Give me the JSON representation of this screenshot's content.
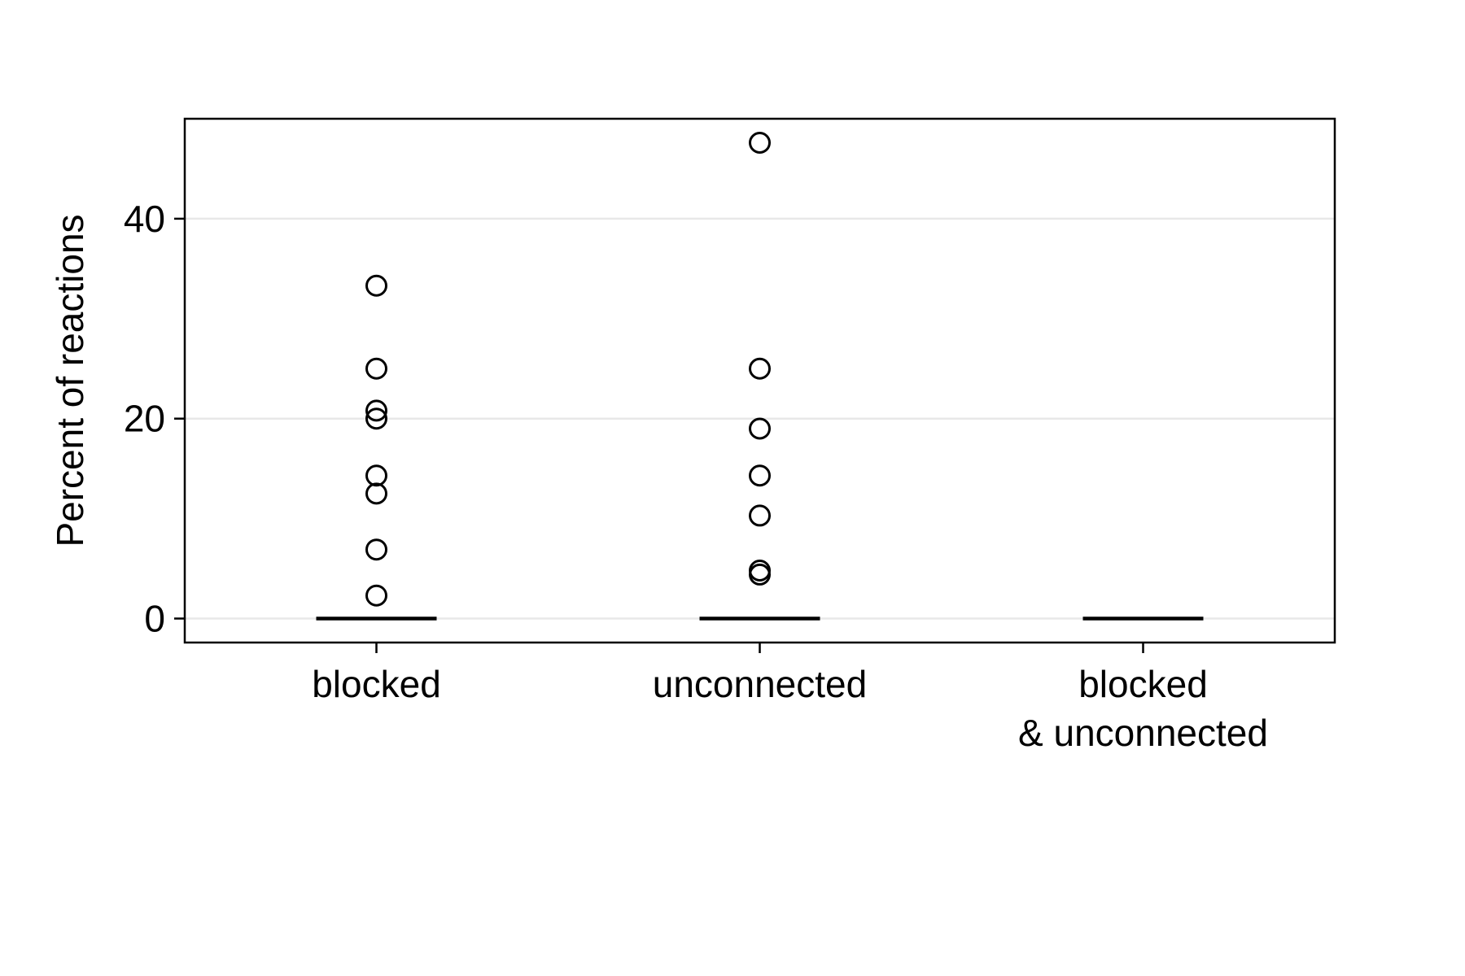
{
  "chart_data": {
    "type": "box",
    "title": "",
    "xlabel": "",
    "ylabel": "Percent of reactions",
    "ylim": [
      -2.4,
      50
    ],
    "yticks": [
      0,
      20,
      40
    ],
    "grid": {
      "y": true,
      "x": false,
      "color": "#e8e8e8"
    },
    "categories": [
      {
        "lines": [
          "blocked"
        ]
      },
      {
        "lines": [
          "unconnected"
        ]
      },
      {
        "lines": [
          "blocked",
          "& unconnected"
        ]
      }
    ],
    "medians": [
      0,
      0,
      0
    ],
    "outliers": [
      [
        2.3,
        6.9,
        12.5,
        14.3,
        20.0,
        20.8,
        25.0,
        33.3
      ],
      [
        4.4,
        4.8,
        10.3,
        14.3,
        19.0,
        25.0,
        47.6
      ],
      []
    ],
    "colors": {
      "marker": "#000000",
      "median": "#000000",
      "frame": "#000000"
    }
  }
}
